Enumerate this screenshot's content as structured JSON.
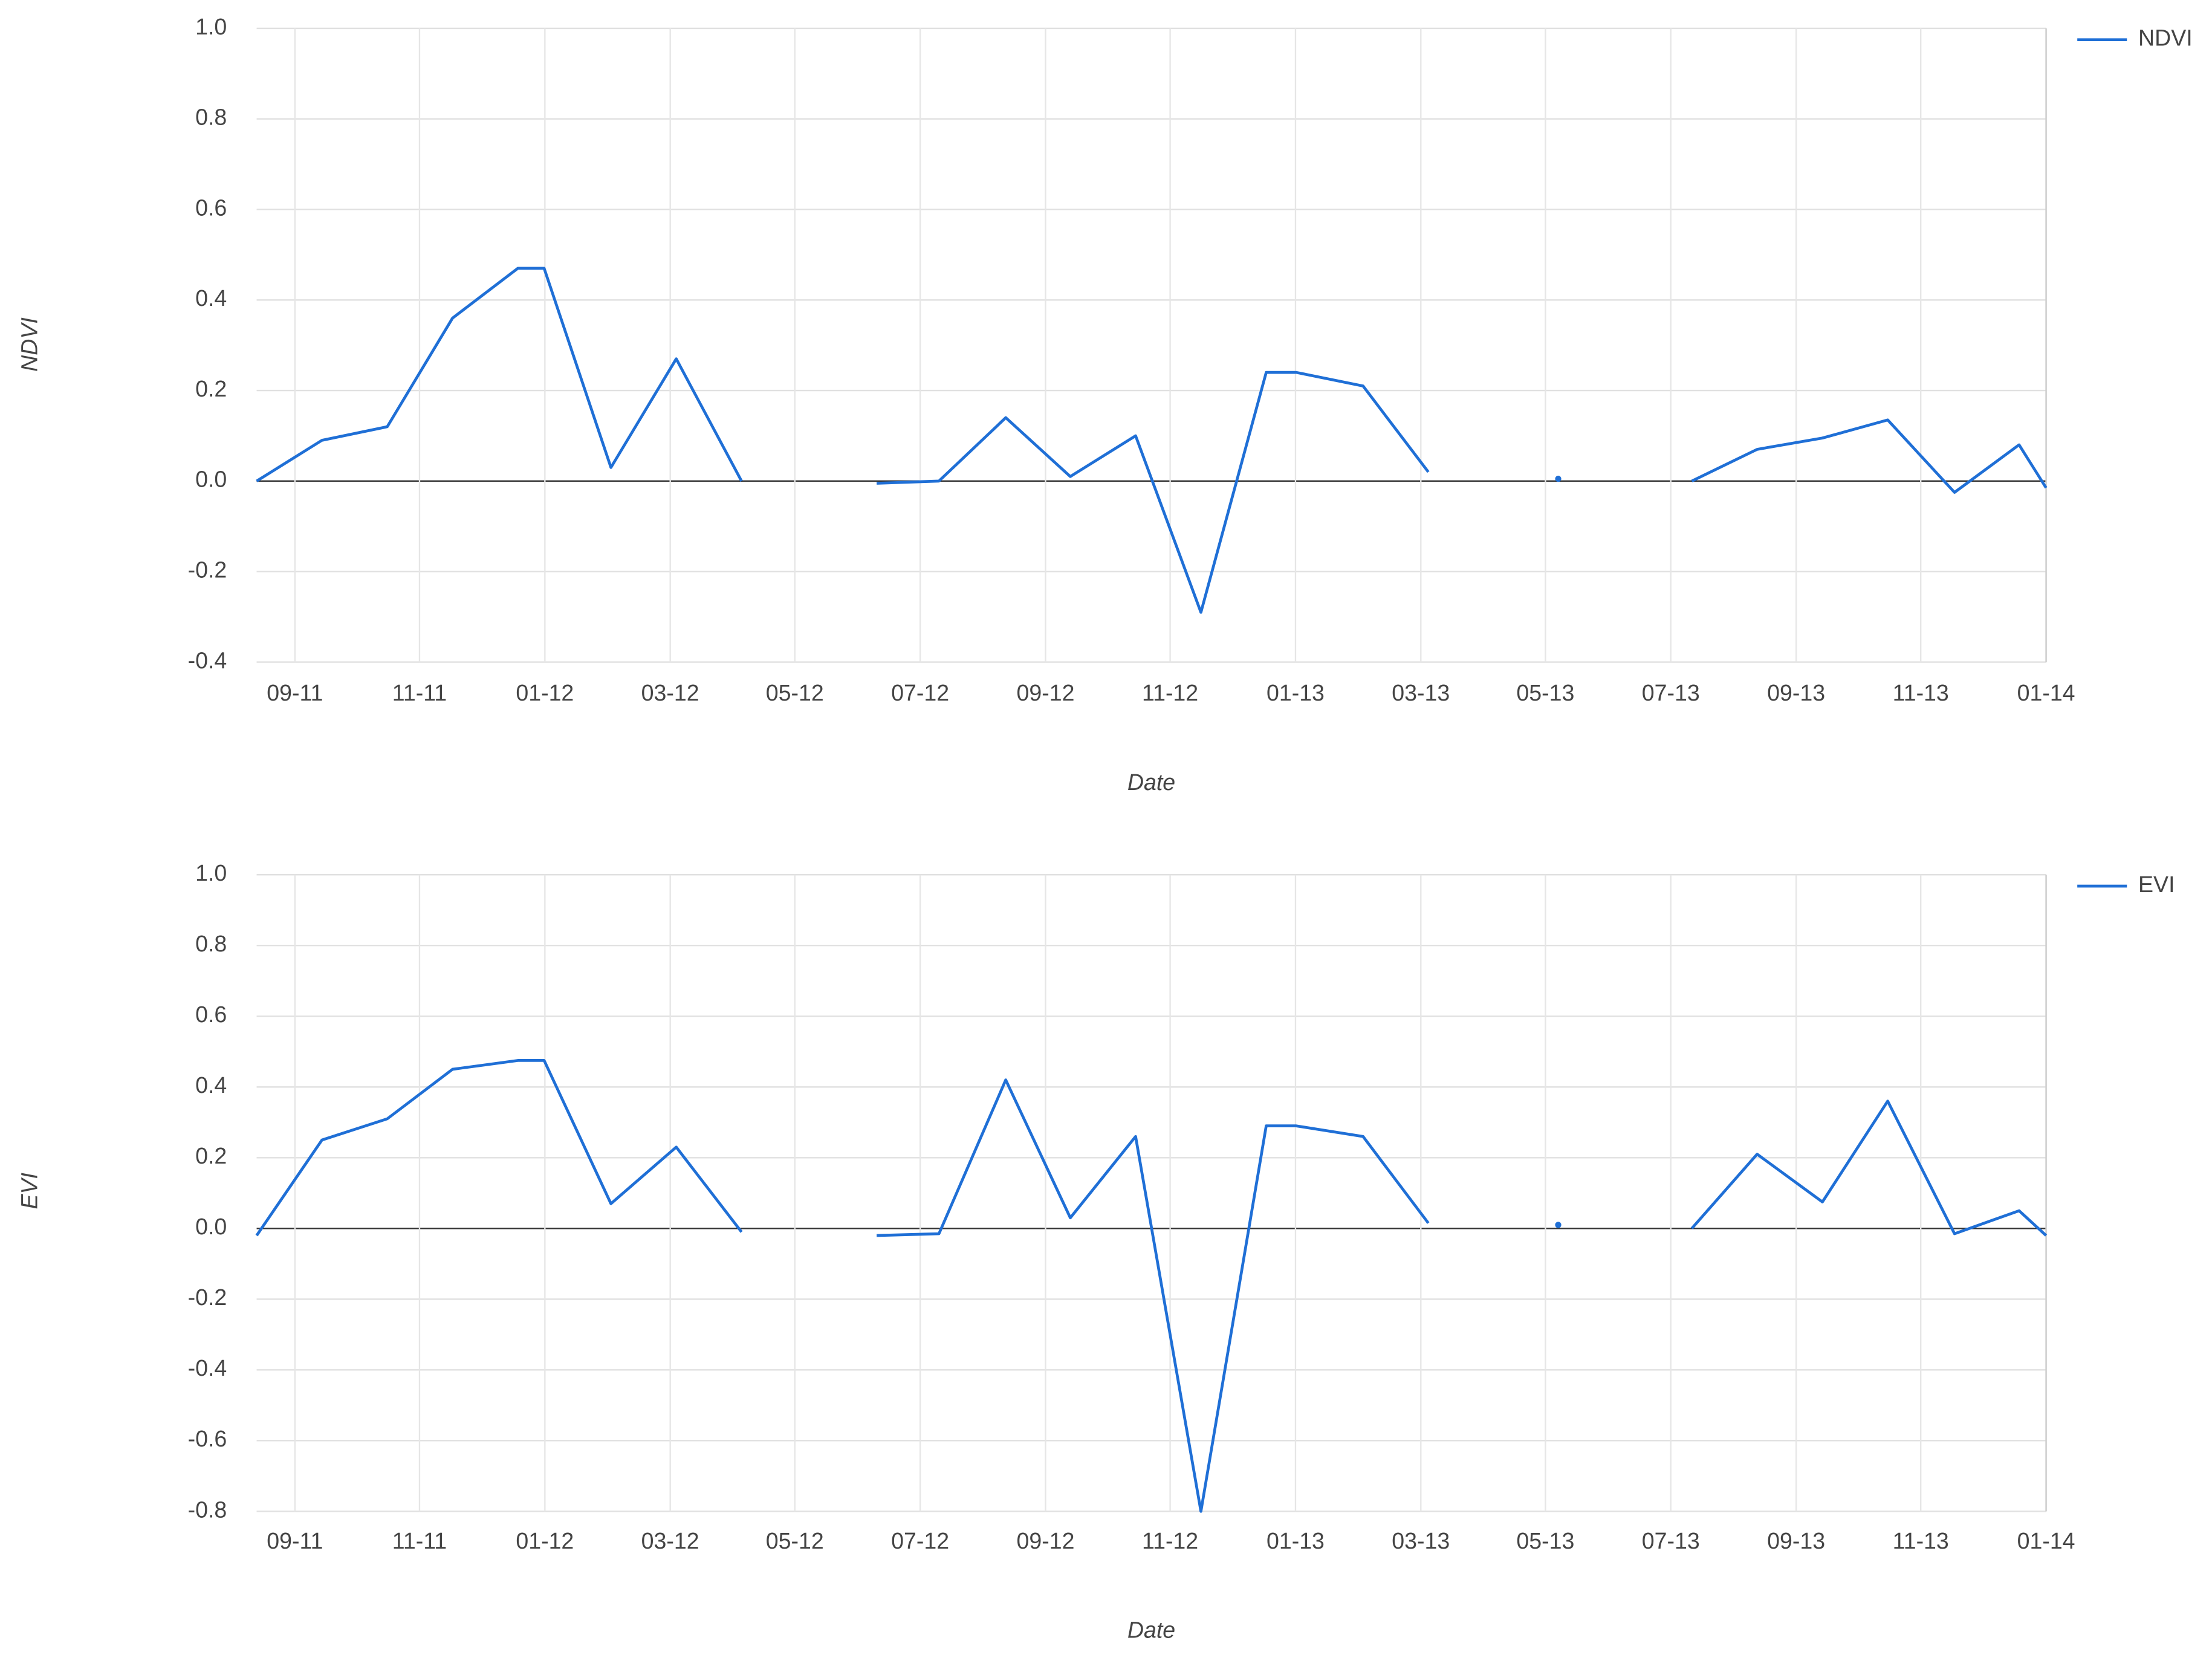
{
  "chart_data": [
    {
      "type": "line",
      "x_label": "Date",
      "y_label": "NDVI",
      "legend": "top-right",
      "grid": true,
      "x": [
        2011.616,
        2011.703,
        2011.79,
        2011.877,
        2011.964,
        2011.999,
        2012.088,
        2012.175,
        2012.262,
        2012.349,
        2012.442,
        2012.525,
        2012.614,
        2012.7,
        2012.787,
        2012.874,
        2012.961,
        2013.001,
        2013.09,
        2013.177,
        2013.264,
        2013.35,
        2013.439,
        2013.528,
        2013.615,
        2013.702,
        2013.789,
        2013.878,
        2013.964,
        2014.0
      ],
      "series": [
        {
          "name": "NDVI",
          "color": "#1f6fd6",
          "values": [
            0.0,
            0.09,
            0.12,
            0.36,
            0.47,
            0.47,
            0.03,
            0.27,
            0.0,
            null,
            -0.005,
            0.0,
            0.14,
            0.01,
            0.1,
            -0.29,
            0.24,
            0.24,
            0.21,
            0.02,
            null,
            0.005,
            null,
            0.0,
            0.07,
            0.095,
            0.135,
            -0.025,
            0.08,
            -0.015
          ]
        }
      ],
      "xlim": [
        2011.616,
        2014.0
      ],
      "xticks": [
        {
          "value": 2011.667,
          "label": "09-11"
        },
        {
          "value": 2011.833,
          "label": "11-11"
        },
        {
          "value": 2012.0,
          "label": "01-12"
        },
        {
          "value": 2012.167,
          "label": "03-12"
        },
        {
          "value": 2012.333,
          "label": "05-12"
        },
        {
          "value": 2012.5,
          "label": "07-12"
        },
        {
          "value": 2012.667,
          "label": "09-12"
        },
        {
          "value": 2012.833,
          "label": "11-12"
        },
        {
          "value": 2013.0,
          "label": "01-13"
        },
        {
          "value": 2013.167,
          "label": "03-13"
        },
        {
          "value": 2013.333,
          "label": "05-13"
        },
        {
          "value": 2013.5,
          "label": "07-13"
        },
        {
          "value": 2013.667,
          "label": "09-13"
        },
        {
          "value": 2013.833,
          "label": "11-13"
        },
        {
          "value": 2014.0,
          "label": "01-14"
        }
      ],
      "ylim": [
        -0.4,
        1.0
      ],
      "yticks": [
        {
          "value": 1,
          "label": "1.0"
        },
        0.8,
        0.6,
        0.4,
        0.2,
        {
          "value": 0,
          "label": "0.0"
        },
        -0.2,
        -0.4
      ]
    },
    {
      "type": "line",
      "x_label": "Date",
      "y_label": "EVI",
      "legend": "top-right",
      "grid": true,
      "x": [
        2011.616,
        2011.703,
        2011.79,
        2011.877,
        2011.964,
        2011.999,
        2012.088,
        2012.175,
        2012.262,
        2012.349,
        2012.442,
        2012.525,
        2012.614,
        2012.7,
        2012.787,
        2012.874,
        2012.961,
        2013.001,
        2013.09,
        2013.177,
        2013.264,
        2013.35,
        2013.439,
        2013.528,
        2013.615,
        2013.702,
        2013.789,
        2013.878,
        2013.964,
        2014.0
      ],
      "series": [
        {
          "name": "EVI",
          "color": "#1f6fd6",
          "values": [
            -0.02,
            0.25,
            0.31,
            0.45,
            0.475,
            0.475,
            0.07,
            0.23,
            -0.01,
            null,
            -0.02,
            -0.015,
            0.42,
            0.03,
            0.26,
            -0.8,
            0.29,
            0.29,
            0.26,
            0.015,
            null,
            0.01,
            null,
            0.0,
            0.21,
            0.075,
            0.36,
            -0.015,
            0.05,
            -0.02
          ]
        }
      ],
      "xlim": [
        2011.616,
        2014.0
      ],
      "xticks": [
        {
          "value": 2011.667,
          "label": "09-11"
        },
        {
          "value": 2011.833,
          "label": "11-11"
        },
        {
          "value": 2012.0,
          "label": "01-12"
        },
        {
          "value": 2012.167,
          "label": "03-12"
        },
        {
          "value": 2012.333,
          "label": "05-12"
        },
        {
          "value": 2012.5,
          "label": "07-12"
        },
        {
          "value": 2012.667,
          "label": "09-12"
        },
        {
          "value": 2012.833,
          "label": "11-12"
        },
        {
          "value": 2013.0,
          "label": "01-13"
        },
        {
          "value": 2013.167,
          "label": "03-13"
        },
        {
          "value": 2013.333,
          "label": "05-13"
        },
        {
          "value": 2013.5,
          "label": "07-13"
        },
        {
          "value": 2013.667,
          "label": "09-13"
        },
        {
          "value": 2013.833,
          "label": "11-13"
        },
        {
          "value": 2014.0,
          "label": "01-14"
        }
      ],
      "ylim": [
        -0.8,
        1.0
      ],
      "yticks": [
        {
          "value": 1,
          "label": "1.0"
        },
        0.8,
        0.6,
        0.4,
        0.2,
        {
          "value": 0,
          "label": "0.0"
        },
        -0.2,
        -0.4,
        -0.6,
        -0.8
      ]
    }
  ]
}
